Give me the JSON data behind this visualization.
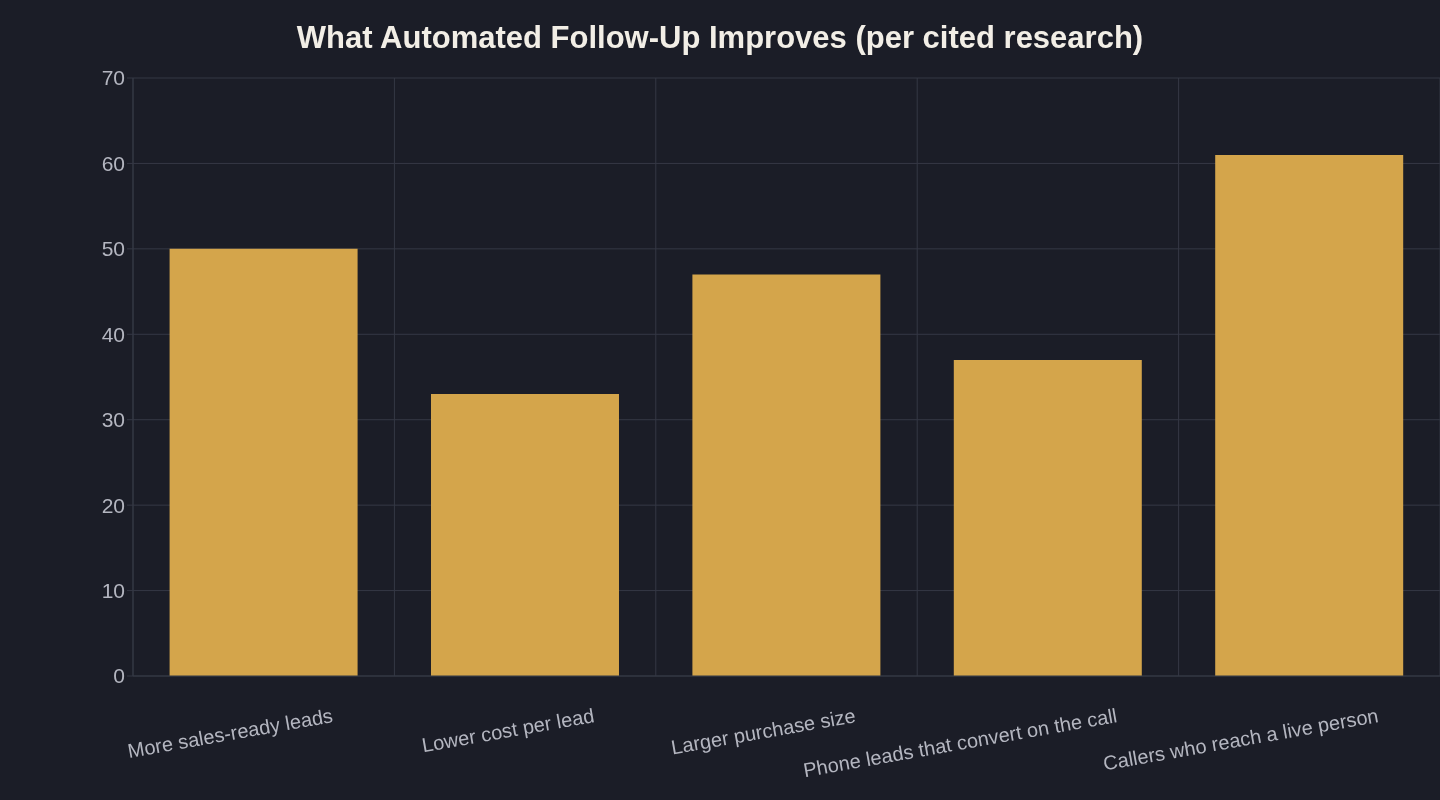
{
  "chart_data": {
    "type": "bar",
    "title": "What Automated Follow-Up Improves (per cited research)",
    "categories": [
      "More sales-ready leads",
      "Lower cost per lead",
      "Larger purchase size",
      "Phone leads that convert on the call",
      "Callers who reach a live person"
    ],
    "values": [
      50,
      33,
      47,
      37,
      61
    ],
    "color": "#d4a54b",
    "ylim": [
      0,
      70
    ],
    "yticks": [
      0,
      10,
      20,
      30,
      40,
      50,
      60,
      70
    ],
    "grid": true
  }
}
